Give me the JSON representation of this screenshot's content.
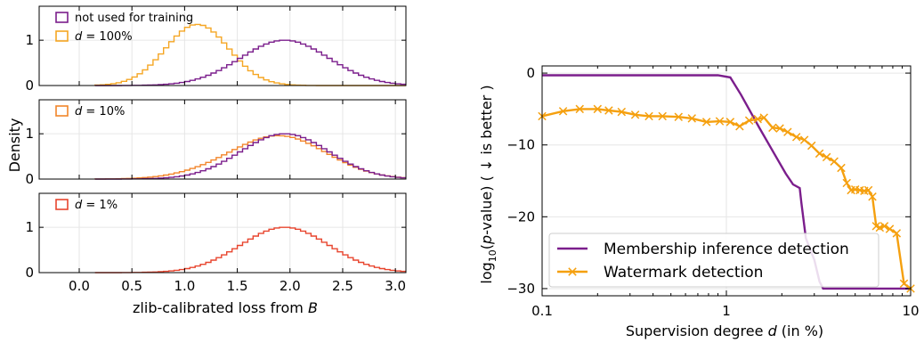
{
  "chart_data": [
    {
      "type": "histogram",
      "panel": "left",
      "subplots": 3,
      "xlabel": "zlib-calibrated loss from",
      "xlabel_var": "B",
      "ylabel": "Density",
      "xlim": [
        -0.38,
        3.1
      ],
      "ylim": [
        0,
        1.75
      ],
      "x_ticks": [
        "0.0",
        "0.5",
        "1.0",
        "1.5",
        "2.0",
        "2.5",
        "3.0"
      ],
      "y_ticks": [
        "0",
        "1"
      ],
      "grid": true,
      "reference": {
        "name": "not used for training",
        "color": "#7b1e8c",
        "mean": 1.95,
        "std": 0.42,
        "peak": 1.0
      },
      "series": [
        {
          "name_var": "d",
          "name_eq": " = 100%",
          "color": "#f5a623",
          "mean": 1.12,
          "std": 0.3,
          "peak": 1.35,
          "mix": 0.0
        },
        {
          "name_var": "d",
          "name_eq": " = 10%",
          "color": "#f2852a",
          "mean": 1.9,
          "std": 0.45,
          "peak": 0.95,
          "mix": 0.06
        },
        {
          "name_var": "d",
          "name_eq": " = 1%",
          "color": "#e8452e",
          "mean": 1.95,
          "std": 0.42,
          "peak": 1.0,
          "mix": 0.0
        }
      ],
      "legend_loc": "upper-left"
    },
    {
      "type": "line",
      "panel": "right",
      "xscale": "log",
      "xlim": [
        0.1,
        10
      ],
      "ylim": [
        -31,
        1
      ],
      "x_ticks": [
        {
          "v": 0.1,
          "t": "0.1"
        },
        {
          "v": 1,
          "t": "1"
        },
        {
          "v": 10,
          "t": "10"
        }
      ],
      "y_ticks": [
        {
          "v": 0,
          "t": "0"
        },
        {
          "v": -10,
          "t": "−10"
        },
        {
          "v": -20,
          "t": "−20"
        },
        {
          "v": -30,
          "t": "−30"
        }
      ],
      "xlabel": "Supervision degree",
      "xlabel_var": "d",
      "xlabel_tail": " (in %)",
      "ylabel_pre": "log",
      "ylabel_sub": "10",
      "ylabel_mid": "(",
      "ylabel_var": "p",
      "ylabel_post": "-value) ( ↓  is better )",
      "grid": true,
      "legend_loc": "lower-left",
      "series": [
        {
          "name": "Membership inference detection",
          "color": "#7b1e8c",
          "marker": "none",
          "x": [
            0.1,
            0.3,
            0.9,
            1.05,
            1.2,
            1.5,
            1.8,
            2.1,
            2.3,
            2.5,
            2.55,
            2.7,
            3.0,
            3.2,
            3.35,
            3.6,
            5.0,
            10
          ],
          "y": [
            -0.3,
            -0.3,
            -0.3,
            -0.6,
            -3,
            -7.5,
            -11,
            -14,
            -15.5,
            -16,
            -18,
            -23,
            -26,
            -29,
            -30,
            -30,
            -30,
            -30
          ]
        },
        {
          "name": "Watermark detection",
          "color": "#f5a00f",
          "marker": "x",
          "x": [
            0.1,
            0.13,
            0.16,
            0.2,
            0.23,
            0.27,
            0.32,
            0.38,
            0.45,
            0.55,
            0.65,
            0.78,
            0.92,
            1.05,
            1.18,
            1.33,
            1.48,
            1.6,
            1.78,
            1.95,
            2.15,
            2.4,
            2.65,
            2.9,
            3.2,
            3.5,
            3.85,
            4.2,
            4.5,
            4.75,
            5.0,
            5.3,
            5.6,
            5.9,
            6.2,
            6.5,
            6.8,
            7.2,
            7.7,
            8.4,
            9.2,
            10
          ],
          "y": [
            -6,
            -5.3,
            -5,
            -5,
            -5.2,
            -5.4,
            -5.8,
            -6,
            -6,
            -6.1,
            -6.3,
            -6.8,
            -6.7,
            -6.8,
            -7.4,
            -6.6,
            -6.4,
            -6.2,
            -7.6,
            -7.7,
            -8.2,
            -8.9,
            -9.3,
            -10.1,
            -11.2,
            -11.7,
            -12.3,
            -13.2,
            -15.3,
            -16.3,
            -16.2,
            -16.3,
            -16.4,
            -16.3,
            -17.2,
            -21.3,
            -21.5,
            -21.3,
            -21.7,
            -22.3,
            -29.3,
            -30
          ]
        }
      ]
    }
  ]
}
